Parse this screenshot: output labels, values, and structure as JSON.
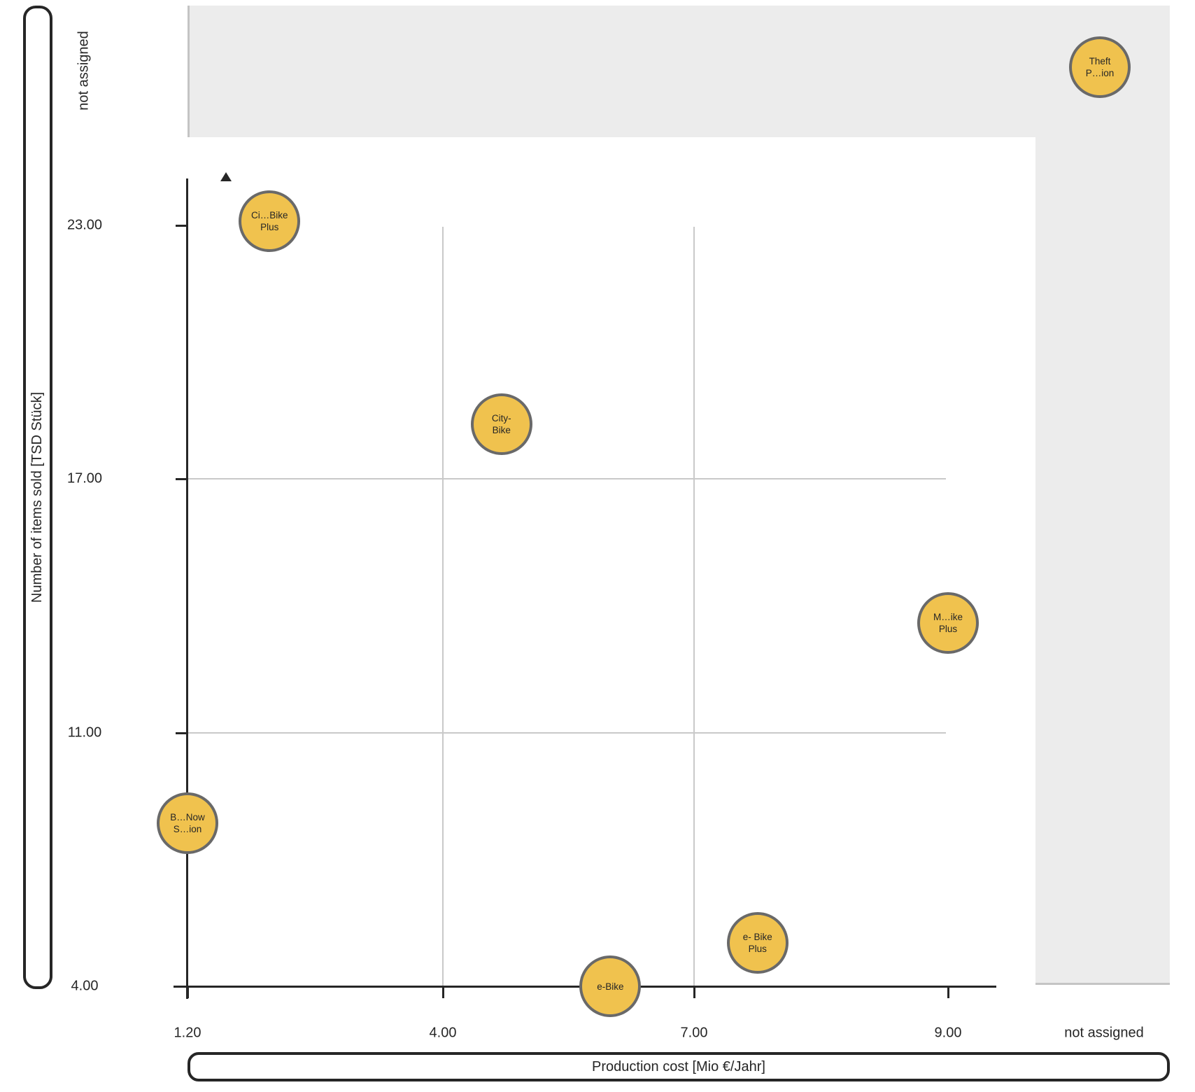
{
  "colors": {
    "bubble_fill": "#F0C24E",
    "bubble_border": "#696969",
    "band_gray": "#ECECEC",
    "gridline": "#C9C9C9",
    "band_edge": "#C4C4C4",
    "ink": "#262626"
  },
  "chart_data": {
    "type": "scatter",
    "subtype": "bubble",
    "grid": true,
    "legend": "none",
    "x_axis": {
      "label": "Production cost [Mio €/Jahr]",
      "ticks": [
        1.2,
        4,
        7,
        9
      ],
      "tick_labels": [
        "1.20",
        "4.00",
        "7.00",
        "9.00"
      ],
      "not_assigned": "not assigned",
      "gridlines_at": [
        4,
        7
      ],
      "tick_spacing": "uniform-pixel"
    },
    "y_axis": {
      "label": "Number of items sold [TSD Stück]",
      "ticks": [
        23,
        17,
        11,
        4
      ],
      "tick_labels": [
        "23.00",
        "17.00",
        "11.00",
        "4.00"
      ],
      "not_assigned": "not assigned",
      "gridlines_at": [
        17,
        11
      ],
      "tick_spacing": "uniform-pixel"
    },
    "points": [
      {
        "name": "Ci…Bike Plus",
        "label_lines": [
          "Ci…Bike",
          "Plus"
        ],
        "x": 2.1,
        "y": 23.1
      },
      {
        "name": "City-Bike",
        "label_lines": [
          "City-",
          "Bike"
        ],
        "x": 4.7,
        "y": 18.3
      },
      {
        "name": "Theft P…ion",
        "label_lines": [
          "Theft",
          "P…ion"
        ],
        "x": "not assigned",
        "y": "not assigned"
      },
      {
        "name": "M…ike Plus",
        "label_lines": [
          "M…ike",
          "Plus"
        ],
        "x": 9.0,
        "y": 13.6
      },
      {
        "name": "B…Now S…ion",
        "label_lines": [
          "B…Now",
          "S…ion"
        ],
        "x": 1.2,
        "y": 8.5
      },
      {
        "name": "e- Bike Plus",
        "label_lines": [
          "e- Bike",
          "Plus"
        ],
        "x": 7.5,
        "y": 5.2
      },
      {
        "name": "e-Bike",
        "label_lines": [
          "e-Bike"
        ],
        "x": 6.0,
        "y": 4.0
      }
    ]
  }
}
